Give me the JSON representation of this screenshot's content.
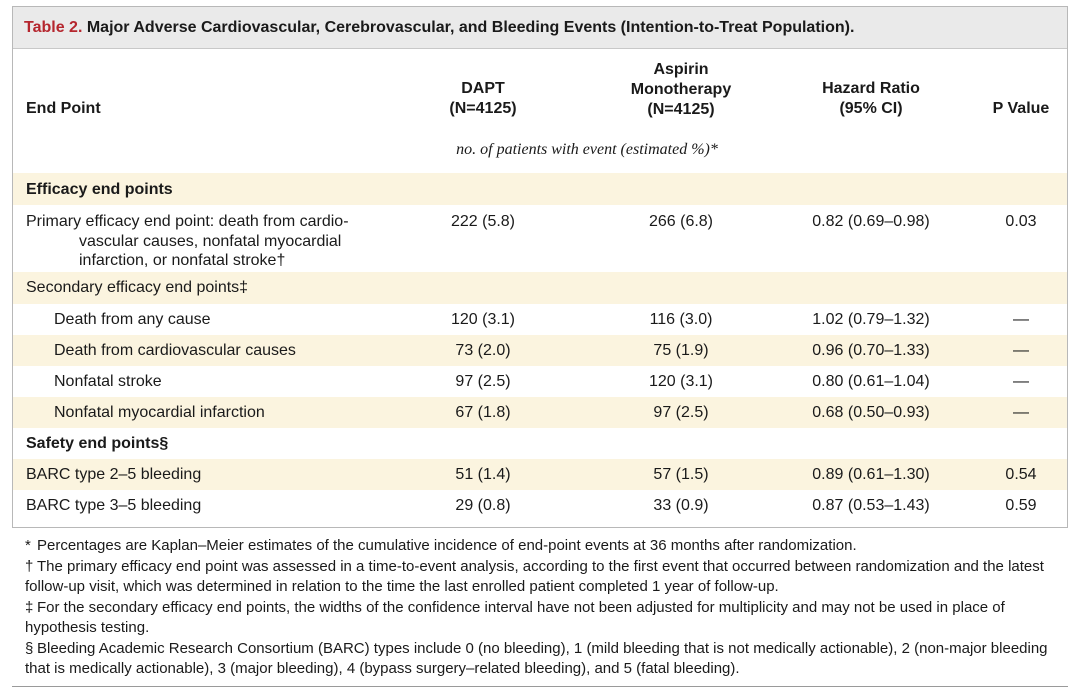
{
  "title": {
    "label": "Table 2.",
    "text": " Major Adverse Cardiovascular, Cerebrovascular, and Bleeding Events (Intention-to-Treat Population)."
  },
  "header": {
    "end_point": "End Point",
    "dapt_line1": "DAPT",
    "dapt_line2": "(N=4125)",
    "asp_line1": "Aspirin",
    "asp_line2": "Monotherapy",
    "asp_line3": "(N=4125)",
    "hr_line1": "Hazard Ratio",
    "hr_line2": "(95% CI)",
    "p_value": "P Value",
    "units": "no. of patients with event (estimated %)*"
  },
  "rows": [
    {
      "label": "Efficacy end points",
      "dapt": "",
      "aspirin": "",
      "hr": "",
      "p": ""
    },
    {
      "label": "Primary efficacy end point: death from cardio-",
      "label2": "vascular causes, nonfatal myocardial",
      "label3": "infarction, or nonfatal stroke†",
      "dapt": "222 (5.8)",
      "aspirin": "266 (6.8)",
      "hr": "0.82 (0.69–0.98)",
      "p": "0.03"
    },
    {
      "label": "Secondary efficacy end points‡",
      "dapt": "",
      "aspirin": "",
      "hr": "",
      "p": ""
    },
    {
      "label": "Death from any cause",
      "dapt": "120 (3.1)",
      "aspirin": "116 (3.0)",
      "hr": "1.02 (0.79–1.32)",
      "p": "—"
    },
    {
      "label": "Death from cardiovascular causes",
      "dapt": "73 (2.0)",
      "aspirin": "75 (1.9)",
      "hr": "0.96 (0.70–1.33)",
      "p": "—"
    },
    {
      "label": "Nonfatal stroke",
      "dapt": "97 (2.5)",
      "aspirin": "120 (3.1)",
      "hr": "0.80 (0.61–1.04)",
      "p": "—"
    },
    {
      "label": "Nonfatal myocardial infarction",
      "dapt": "67 (1.8)",
      "aspirin": "97 (2.5)",
      "hr": "0.68 (0.50–0.93)",
      "p": "—"
    },
    {
      "label": "Safety end points§",
      "dapt": "",
      "aspirin": "",
      "hr": "",
      "p": ""
    },
    {
      "label": "BARC type 2–5 bleeding",
      "dapt": "51 (1.4)",
      "aspirin": "57 (1.5)",
      "hr": "0.89 (0.61–1.30)",
      "p": "0.54"
    },
    {
      "label": "BARC type 3–5 bleeding",
      "dapt": "29 (0.8)",
      "aspirin": "33 (0.9)",
      "hr": "0.87 (0.53–1.43)",
      "p": "0.59"
    }
  ],
  "footnotes": [
    {
      "sym": "*",
      "text": "Percentages are Kaplan–Meier estimates of the cumulative incidence of end-point events at 36 months after randomization."
    },
    {
      "sym": "†",
      "text": "The primary efficacy end point was assessed in a time-to-event analysis, according to the first event that occurred between randomization and the latest follow-up visit, which was determined in relation to the time the last enrolled patient completed 1 year of follow-up."
    },
    {
      "sym": "‡",
      "text": "For the secondary efficacy end points, the widths of the confidence interval have not been adjusted for multiplicity and may not be used in place of hypothesis testing."
    },
    {
      "sym": "§",
      "text": "Bleeding Academic Research Consortium (BARC) types include 0 (no bleeding), 1 (mild bleeding that is not medically actionable), 2 (non-major bleeding that is medically actionable), 3 (major bleeding), 4 (bypass surgery–related bleeding), and 5 (fatal bleeding)."
    }
  ]
}
